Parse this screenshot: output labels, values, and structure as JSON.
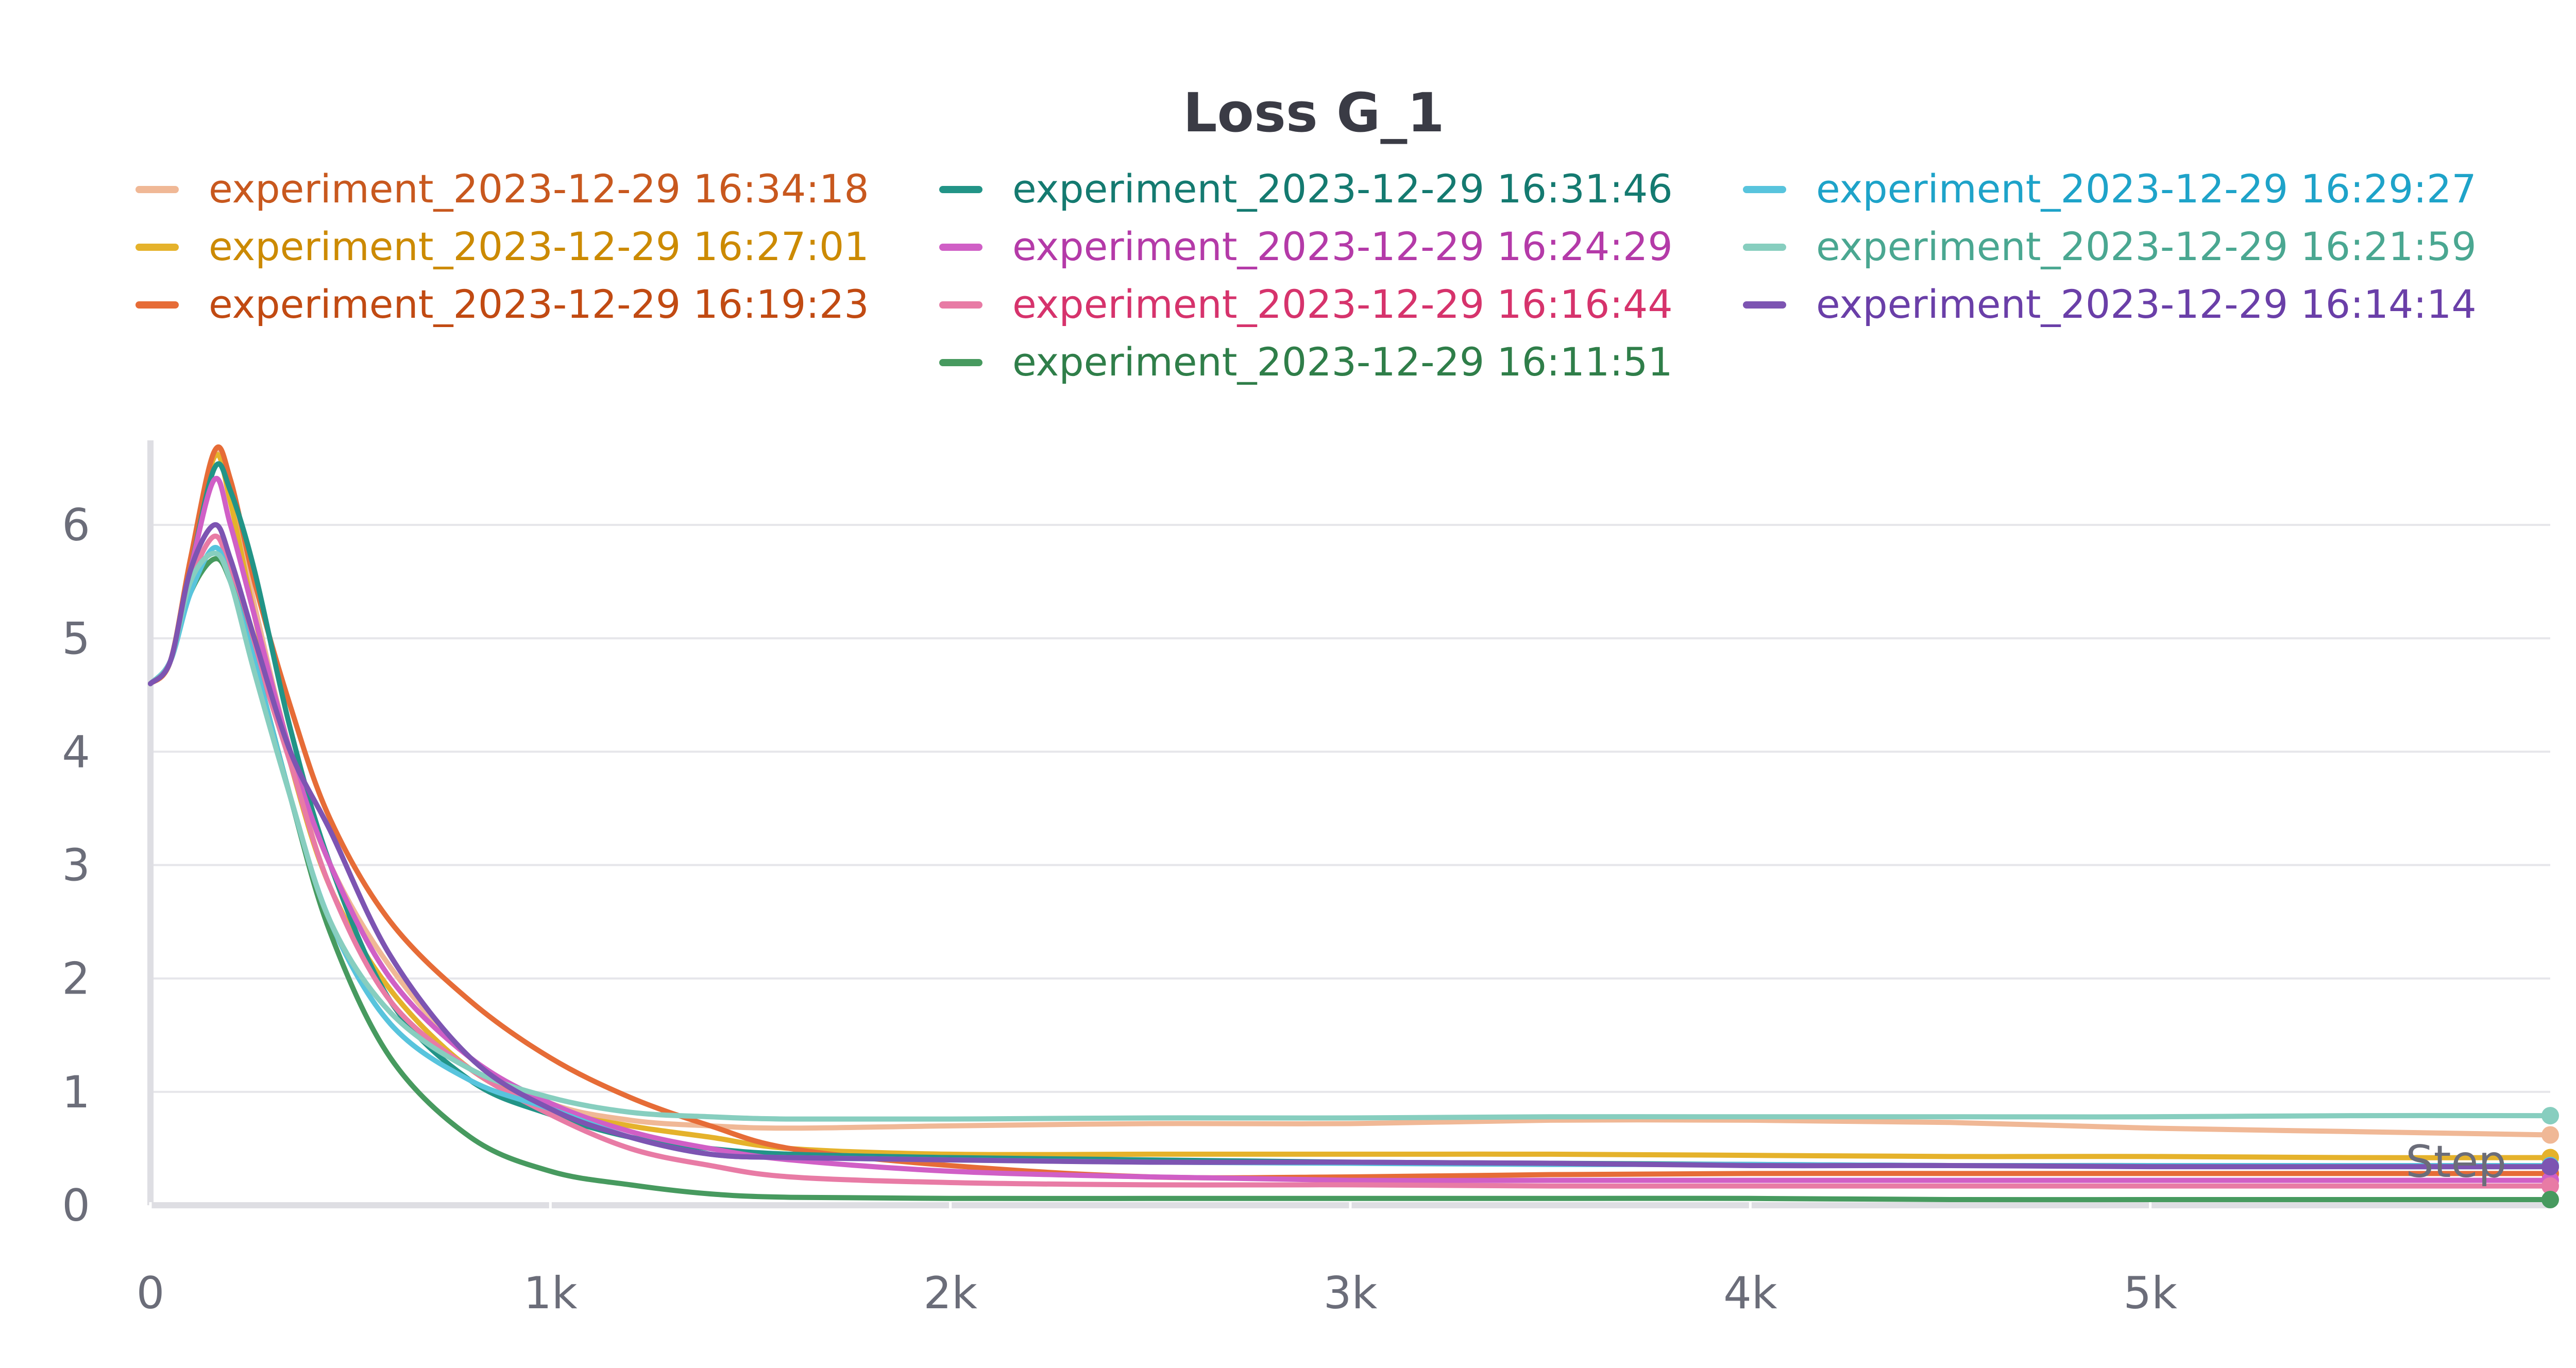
{
  "chart_data": {
    "type": "line",
    "title": "Loss G_1",
    "xlabel": "Step",
    "ylabel": "",
    "xlim": [
      0,
      6000
    ],
    "ylim": [
      0,
      6.7
    ],
    "x_ticks": [
      0,
      1000,
      2000,
      3000,
      4000,
      5000
    ],
    "x_tick_labels": [
      "0",
      "1k",
      "2k",
      "3k",
      "4k",
      "5k"
    ],
    "y_ticks": [
      0,
      1,
      2,
      3,
      4,
      5,
      6
    ],
    "y_tick_labels": [
      "0",
      "1",
      "2",
      "3",
      "4",
      "5",
      "6"
    ],
    "grid": true,
    "legend_position": "top",
    "series": [
      {
        "name": "experiment_2023-12-29 16:34:18",
        "color": "#f0b896",
        "label_color": "#c8581e",
        "x": [
          0,
          50,
          100,
          160,
          200,
          260,
          350,
          450,
          600,
          800,
          1000,
          1200,
          1400,
          1600,
          2000,
          2500,
          3000,
          3500,
          4000,
          4500,
          5000,
          5500,
          6000
        ],
        "y": [
          4.6,
          4.8,
          5.7,
          6.65,
          6.3,
          5.3,
          4.0,
          3.0,
          2.1,
          1.3,
          0.9,
          0.75,
          0.7,
          0.68,
          0.7,
          0.72,
          0.72,
          0.75,
          0.75,
          0.73,
          0.68,
          0.65,
          0.62
        ]
      },
      {
        "name": "experiment_2023-12-29 16:27:01",
        "color": "#e5b22b",
        "label_color": "#cc8a00",
        "x": [
          0,
          50,
          100,
          160,
          200,
          260,
          350,
          450,
          600,
          800,
          1000,
          1200,
          1400,
          1600,
          2000,
          2500,
          3000,
          3500,
          4000,
          4500,
          5000,
          5500,
          6000
        ],
        "y": [
          4.6,
          4.8,
          5.6,
          6.6,
          6.2,
          5.2,
          3.9,
          2.8,
          1.9,
          1.2,
          0.85,
          0.7,
          0.6,
          0.5,
          0.45,
          0.45,
          0.45,
          0.45,
          0.44,
          0.43,
          0.43,
          0.42,
          0.42
        ]
      },
      {
        "name": "experiment_2023-12-29 16:19:23",
        "color": "#e66c37",
        "label_color": "#c14a12",
        "x": [
          0,
          50,
          100,
          160,
          200,
          260,
          350,
          450,
          600,
          800,
          1000,
          1200,
          1400,
          1600,
          2000,
          2500,
          3000,
          3500,
          4000,
          4500,
          5000,
          5500,
          6000
        ],
        "y": [
          4.6,
          4.8,
          5.7,
          6.65,
          6.4,
          5.5,
          4.4,
          3.4,
          2.5,
          1.8,
          1.3,
          0.95,
          0.7,
          0.5,
          0.35,
          0.25,
          0.25,
          0.27,
          0.28,
          0.28,
          0.28,
          0.28,
          0.28
        ]
      },
      {
        "name": "experiment_2023-12-29 16:31:46",
        "color": "#229487",
        "label_color": "#147a70",
        "x": [
          0,
          50,
          100,
          160,
          200,
          260,
          350,
          450,
          600,
          800,
          1000,
          1200,
          1400,
          1600,
          2000,
          2500,
          3000,
          3500,
          4000,
          4500,
          5000,
          5500,
          6000
        ],
        "y": [
          4.6,
          4.8,
          5.6,
          6.5,
          6.3,
          5.6,
          4.2,
          3.0,
          1.8,
          1.1,
          0.8,
          0.6,
          0.5,
          0.45,
          0.42,
          0.4,
          0.38,
          0.37,
          0.36,
          0.35,
          0.35,
          0.34,
          0.34
        ]
      },
      {
        "name": "experiment_2023-12-29 16:24:29",
        "color": "#d05fc6",
        "label_color": "#b43aa8",
        "x": [
          0,
          50,
          100,
          160,
          200,
          260,
          350,
          450,
          600,
          800,
          1000,
          1200,
          1400,
          1600,
          2000,
          2500,
          3000,
          3500,
          4000,
          4500,
          5000,
          5500,
          6000
        ],
        "y": [
          4.6,
          4.8,
          5.6,
          6.4,
          6.0,
          5.2,
          4.0,
          3.0,
          2.0,
          1.3,
          0.9,
          0.65,
          0.5,
          0.4,
          0.3,
          0.25,
          0.22,
          0.22,
          0.22,
          0.22,
          0.22,
          0.22,
          0.22
        ]
      },
      {
        "name": "experiment_2023-12-29 16:16:44",
        "color": "#e87ba5",
        "label_color": "#d6336c",
        "x": [
          0,
          50,
          100,
          160,
          200,
          260,
          350,
          450,
          600,
          800,
          1000,
          1200,
          1400,
          1600,
          2000,
          2500,
          3000,
          3500,
          4000,
          4500,
          5000,
          5500,
          6000
        ],
        "y": [
          4.6,
          4.8,
          5.5,
          5.9,
          5.6,
          4.9,
          3.9,
          2.8,
          1.8,
          1.2,
          0.8,
          0.5,
          0.35,
          0.25,
          0.2,
          0.18,
          0.18,
          0.17,
          0.17,
          0.17,
          0.17,
          0.17,
          0.17
        ]
      },
      {
        "name": "experiment_2023-12-29 16:11:51",
        "color": "#479a5f",
        "label_color": "#2f7e49",
        "x": [
          0,
          50,
          100,
          160,
          200,
          260,
          350,
          450,
          600,
          800,
          1000,
          1200,
          1400,
          1600,
          2000,
          2500,
          3000,
          3500,
          4000,
          4500,
          5000,
          5500,
          6000
        ],
        "y": [
          4.6,
          4.8,
          5.4,
          5.7,
          5.5,
          4.8,
          3.6,
          2.4,
          1.3,
          0.6,
          0.3,
          0.18,
          0.1,
          0.07,
          0.06,
          0.06,
          0.06,
          0.06,
          0.06,
          0.05,
          0.05,
          0.05,
          0.05
        ]
      },
      {
        "name": "experiment_2023-12-29 16:29:27",
        "color": "#58c4dd",
        "label_color": "#1ea3c9",
        "x": [
          0,
          50,
          100,
          160,
          200,
          260,
          350,
          450,
          600,
          800,
          1000,
          1200,
          1400,
          1600,
          2000,
          2500,
          3000,
          3500,
          4000,
          4500,
          5000,
          5500,
          6000
        ],
        "y": [
          4.6,
          4.8,
          5.4,
          5.8,
          5.5,
          4.8,
          3.6,
          2.5,
          1.6,
          1.1,
          0.85,
          0.6,
          0.45,
          0.42,
          0.4,
          0.38,
          0.37,
          0.36,
          0.36,
          0.35,
          0.35,
          0.35,
          0.35
        ]
      },
      {
        "name": "experiment_2023-12-29 16:21:59",
        "color": "#87cebf",
        "label_color": "#4aa791",
        "x": [
          0,
          50,
          100,
          160,
          200,
          260,
          350,
          450,
          600,
          800,
          1000,
          1200,
          1400,
          1600,
          2000,
          2500,
          3000,
          3500,
          4000,
          4500,
          5000,
          5500,
          6000
        ],
        "y": [
          4.6,
          4.8,
          5.5,
          5.75,
          5.5,
          4.7,
          3.6,
          2.5,
          1.7,
          1.2,
          0.95,
          0.82,
          0.78,
          0.76,
          0.76,
          0.77,
          0.77,
          0.78,
          0.78,
          0.78,
          0.78,
          0.79,
          0.79
        ]
      },
      {
        "name": "experiment_2023-12-29 16:14:14",
        "color": "#7d54b2",
        "label_color": "#6a3fa8",
        "x": [
          0,
          50,
          100,
          160,
          200,
          260,
          350,
          450,
          600,
          800,
          1000,
          1200,
          1400,
          1600,
          2000,
          2500,
          3000,
          3500,
          4000,
          4500,
          5000,
          5500,
          6000
        ],
        "y": [
          4.6,
          4.8,
          5.6,
          6.0,
          5.7,
          5.0,
          4.0,
          3.3,
          2.2,
          1.3,
          0.85,
          0.6,
          0.45,
          0.42,
          0.4,
          0.38,
          0.38,
          0.37,
          0.35,
          0.35,
          0.34,
          0.34,
          0.34
        ]
      }
    ],
    "legend_order": [
      0,
      3,
      7,
      1,
      4,
      8,
      2,
      5,
      9,
      6
    ]
  }
}
